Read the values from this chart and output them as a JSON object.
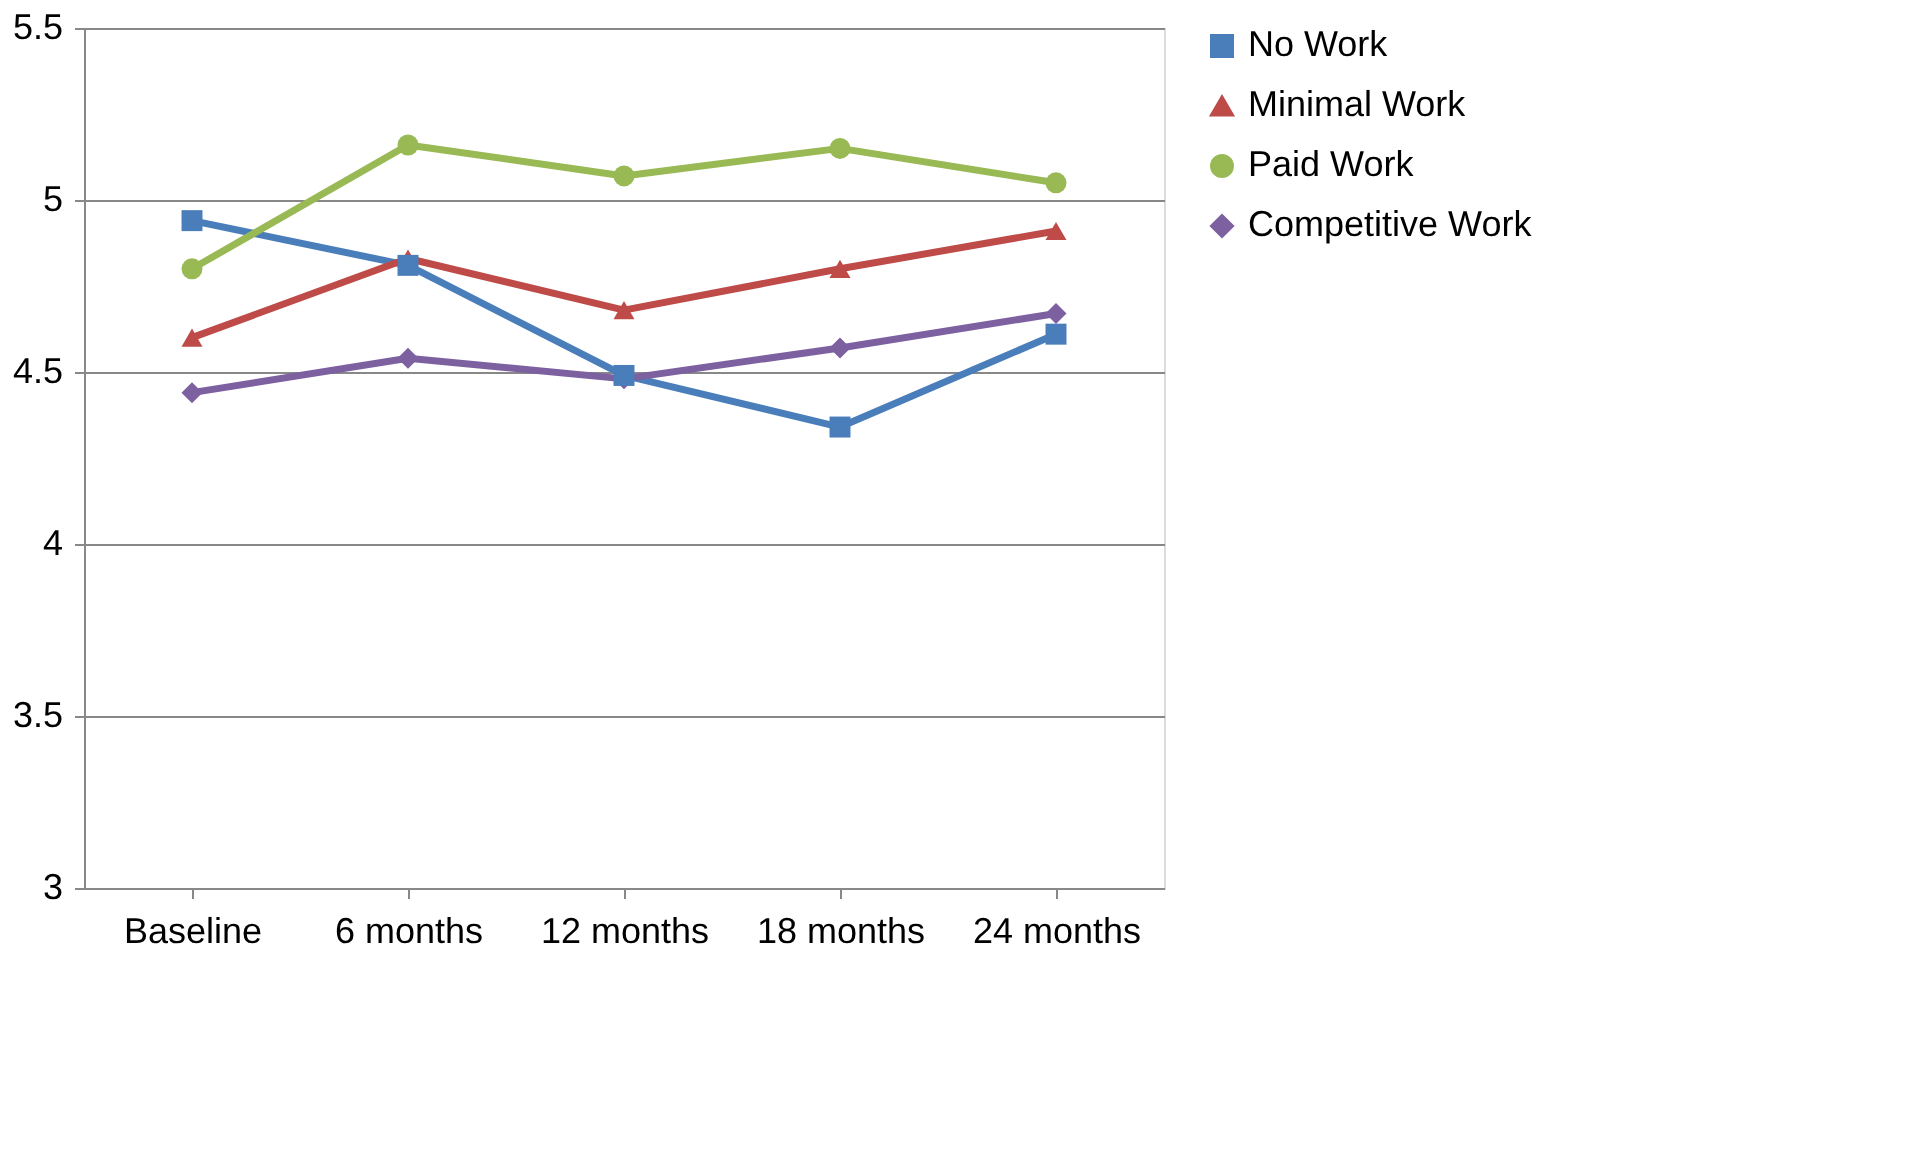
{
  "chart_data": {
    "type": "line",
    "categories": [
      "Baseline",
      "6 months",
      "12 months",
      "18 months",
      "24 months"
    ],
    "series": [
      {
        "name": "No Work",
        "color": "#4a7ebb",
        "marker": "square",
        "values": [
          4.94,
          4.81,
          4.49,
          4.34,
          4.61
        ]
      },
      {
        "name": "Minimal Work",
        "color": "#be4b48",
        "marker": "triangle",
        "values": [
          4.6,
          4.83,
          4.68,
          4.8,
          4.91
        ]
      },
      {
        "name": "Paid Work",
        "color": "#98b954",
        "marker": "circle",
        "values": [
          4.8,
          5.16,
          5.07,
          5.15,
          5.05
        ]
      },
      {
        "name": "Competitive Work",
        "color": "#7d60a0",
        "marker": "diamond",
        "values": [
          4.44,
          4.54,
          4.48,
          4.57,
          4.67
        ]
      }
    ],
    "ylim": [
      3,
      5.5
    ],
    "yticks": [
      3,
      3.5,
      4,
      4.5,
      5,
      5.5
    ],
    "grid": "y",
    "legend": "right",
    "line_style": "solid"
  }
}
